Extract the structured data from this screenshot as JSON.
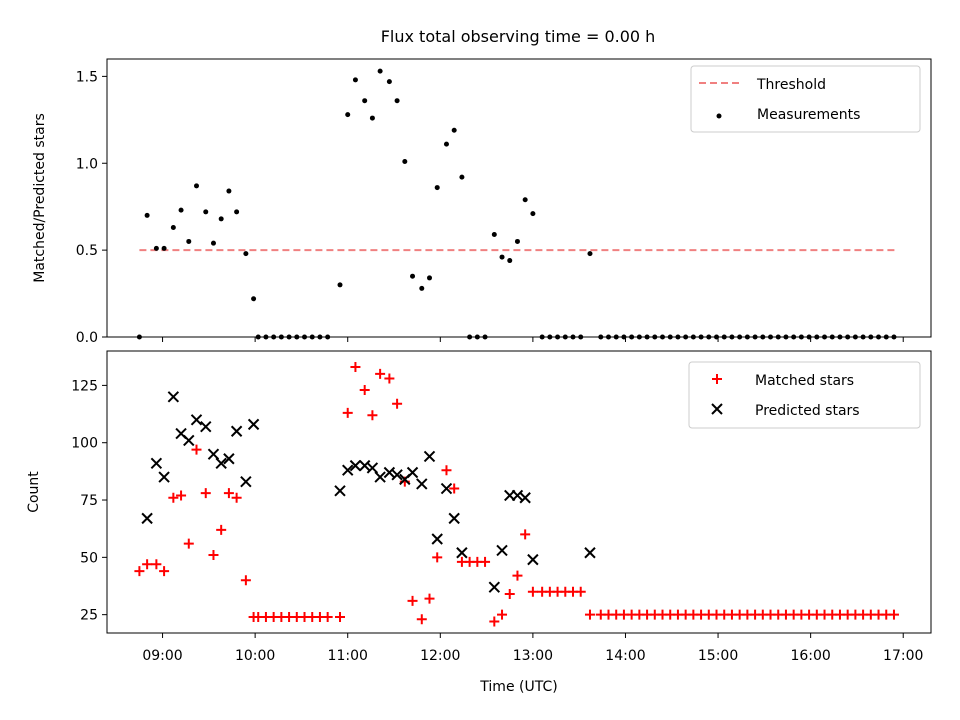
{
  "title": "Flux total observing time = 0.00 h",
  "colors": {
    "threshold": "#f08080",
    "measurements": "#000000",
    "matched": "#ff0000",
    "predicted": "#000000"
  },
  "chart_data": [
    {
      "type": "scatter",
      "ylabel": "Matched/Predicted stars",
      "xlim": [
        "08:24",
        "17:18"
      ],
      "ylim": [
        0,
        1.6
      ],
      "yticks": [
        "0.0",
        "0.5",
        "1.0",
        "1.5"
      ],
      "legend": {
        "position": "top-right",
        "entries": [
          "Threshold",
          "Measurements"
        ]
      },
      "series": [
        {
          "name": "Threshold",
          "kind": "dashed-line",
          "value": 0.5,
          "x_range": [
            "08:45",
            "16:55"
          ]
        },
        {
          "name": "Measurements",
          "kind": "points",
          "points": [
            [
              "08:45",
              0.0
            ],
            [
              "08:50",
              0.7
            ],
            [
              "08:56",
              0.51
            ],
            [
              "09:01",
              0.51
            ],
            [
              "09:07",
              0.63
            ],
            [
              "09:12",
              0.73
            ],
            [
              "09:17",
              0.55
            ],
            [
              "09:22",
              0.87
            ],
            [
              "09:28",
              0.72
            ],
            [
              "09:33",
              0.54
            ],
            [
              "09:38",
              0.68
            ],
            [
              "09:43",
              0.84
            ],
            [
              "09:48",
              0.72
            ],
            [
              "09:54",
              0.48
            ],
            [
              "09:59",
              0.22
            ],
            [
              "10:02",
              0.0
            ],
            [
              "10:07",
              0.0
            ],
            [
              "10:12",
              0.0
            ],
            [
              "10:17",
              0.0
            ],
            [
              "10:22",
              0.0
            ],
            [
              "10:27",
              0.0
            ],
            [
              "10:32",
              0.0
            ],
            [
              "10:37",
              0.0
            ],
            [
              "10:42",
              0.0
            ],
            [
              "10:47",
              0.0
            ],
            [
              "10:55",
              0.3
            ],
            [
              "11:00",
              1.28
            ],
            [
              "11:05",
              1.48
            ],
            [
              "11:11",
              1.36
            ],
            [
              "11:16",
              1.26
            ],
            [
              "11:21",
              1.53
            ],
            [
              "11:27",
              1.47
            ],
            [
              "11:32",
              1.36
            ],
            [
              "11:37",
              1.01
            ],
            [
              "11:42",
              0.35
            ],
            [
              "11:48",
              0.28
            ],
            [
              "11:53",
              0.34
            ],
            [
              "11:58",
              0.86
            ],
            [
              "12:04",
              1.11
            ],
            [
              "12:09",
              1.19
            ],
            [
              "12:14",
              0.92
            ],
            [
              "12:19",
              0.0
            ],
            [
              "12:24",
              0.0
            ],
            [
              "12:29",
              0.0
            ],
            [
              "12:35",
              0.59
            ],
            [
              "12:40",
              0.46
            ],
            [
              "12:45",
              0.44
            ],
            [
              "12:50",
              0.55
            ],
            [
              "12:55",
              0.79
            ],
            [
              "13:00",
              0.71
            ],
            [
              "13:06",
              0.0
            ],
            [
              "13:11",
              0.0
            ],
            [
              "13:16",
              0.0
            ],
            [
              "13:21",
              0.0
            ],
            [
              "13:26",
              0.0
            ],
            [
              "13:31",
              0.0
            ],
            [
              "13:37",
              0.48
            ],
            [
              "13:44",
              0.0
            ],
            [
              "13:49",
              0.0
            ],
            [
              "13:54",
              0.0
            ],
            [
              "13:59",
              0.0
            ],
            [
              "14:04",
              0.0
            ],
            [
              "14:09",
              0.0
            ],
            [
              "14:14",
              0.0
            ],
            [
              "14:19",
              0.0
            ],
            [
              "14:24",
              0.0
            ],
            [
              "14:29",
              0.0
            ],
            [
              "14:34",
              0.0
            ],
            [
              "14:39",
              0.0
            ],
            [
              "14:44",
              0.0
            ],
            [
              "14:49",
              0.0
            ],
            [
              "14:54",
              0.0
            ],
            [
              "14:59",
              0.0
            ],
            [
              "15:04",
              0.0
            ],
            [
              "15:09",
              0.0
            ],
            [
              "15:14",
              0.0
            ],
            [
              "15:19",
              0.0
            ],
            [
              "15:24",
              0.0
            ],
            [
              "15:29",
              0.0
            ],
            [
              "15:34",
              0.0
            ],
            [
              "15:39",
              0.0
            ],
            [
              "15:44",
              0.0
            ],
            [
              "15:49",
              0.0
            ],
            [
              "15:54",
              0.0
            ],
            [
              "15:59",
              0.0
            ],
            [
              "16:04",
              0.0
            ],
            [
              "16:09",
              0.0
            ],
            [
              "16:14",
              0.0
            ],
            [
              "16:19",
              0.0
            ],
            [
              "16:24",
              0.0
            ],
            [
              "16:29",
              0.0
            ],
            [
              "16:34",
              0.0
            ],
            [
              "16:39",
              0.0
            ],
            [
              "16:44",
              0.0
            ],
            [
              "16:49",
              0.0
            ],
            [
              "16:54",
              0.0
            ]
          ]
        }
      ]
    },
    {
      "type": "scatter",
      "xlabel": "Time (UTC)",
      "ylabel": "Count",
      "xlim": [
        "08:24",
        "17:18"
      ],
      "ylim": [
        17,
        140
      ],
      "xticks": [
        "09:00",
        "10:00",
        "11:00",
        "12:00",
        "13:00",
        "14:00",
        "15:00",
        "16:00",
        "17:00"
      ],
      "yticks": [
        "25",
        "50",
        "75",
        "100",
        "125"
      ],
      "legend": {
        "position": "top-right",
        "entries": [
          "Matched stars",
          "Predicted stars"
        ]
      },
      "series": [
        {
          "name": "Matched stars",
          "marker": "+",
          "points": [
            [
              "08:45",
              44
            ],
            [
              "08:50",
              47
            ],
            [
              "08:56",
              47
            ],
            [
              "09:01",
              44
            ],
            [
              "09:07",
              76
            ],
            [
              "09:12",
              77
            ],
            [
              "09:17",
              56
            ],
            [
              "09:22",
              97
            ],
            [
              "09:28",
              78
            ],
            [
              "09:33",
              51
            ],
            [
              "09:38",
              62
            ],
            [
              "09:43",
              78
            ],
            [
              "09:48",
              76
            ],
            [
              "09:54",
              40
            ],
            [
              "09:59",
              24
            ],
            [
              "10:02",
              24
            ],
            [
              "10:07",
              24
            ],
            [
              "10:12",
              24
            ],
            [
              "10:17",
              24
            ],
            [
              "10:22",
              24
            ],
            [
              "10:27",
              24
            ],
            [
              "10:32",
              24
            ],
            [
              "10:37",
              24
            ],
            [
              "10:42",
              24
            ],
            [
              "10:47",
              24
            ],
            [
              "10:55",
              24
            ],
            [
              "11:00",
              113
            ],
            [
              "11:05",
              133
            ],
            [
              "11:11",
              123
            ],
            [
              "11:16",
              112
            ],
            [
              "11:21",
              130
            ],
            [
              "11:27",
              128
            ],
            [
              "11:32",
              117
            ],
            [
              "11:37",
              83
            ],
            [
              "11:42",
              31
            ],
            [
              "11:48",
              23
            ],
            [
              "11:53",
              32
            ],
            [
              "11:58",
              50
            ],
            [
              "12:04",
              88
            ],
            [
              "12:09",
              80
            ],
            [
              "12:14",
              48
            ],
            [
              "12:19",
              48
            ],
            [
              "12:24",
              48
            ],
            [
              "12:29",
              48
            ],
            [
              "12:35",
              22
            ],
            [
              "12:40",
              25
            ],
            [
              "12:45",
              34
            ],
            [
              "12:50",
              42
            ],
            [
              "12:55",
              60
            ],
            [
              "13:00",
              35
            ],
            [
              "13:06",
              35
            ],
            [
              "13:11",
              35
            ],
            [
              "13:16",
              35
            ],
            [
              "13:21",
              35
            ],
            [
              "13:26",
              35
            ],
            [
              "13:31",
              35
            ],
            [
              "13:37",
              25
            ],
            [
              "13:44",
              25
            ],
            [
              "13:49",
              25
            ],
            [
              "13:54",
              25
            ],
            [
              "13:59",
              25
            ],
            [
              "14:04",
              25
            ],
            [
              "14:09",
              25
            ],
            [
              "14:14",
              25
            ],
            [
              "14:19",
              25
            ],
            [
              "14:24",
              25
            ],
            [
              "14:29",
              25
            ],
            [
              "14:34",
              25
            ],
            [
              "14:39",
              25
            ],
            [
              "14:44",
              25
            ],
            [
              "14:49",
              25
            ],
            [
              "14:54",
              25
            ],
            [
              "14:59",
              25
            ],
            [
              "15:04",
              25
            ],
            [
              "15:09",
              25
            ],
            [
              "15:14",
              25
            ],
            [
              "15:19",
              25
            ],
            [
              "15:24",
              25
            ],
            [
              "15:29",
              25
            ],
            [
              "15:34",
              25
            ],
            [
              "15:39",
              25
            ],
            [
              "15:44",
              25
            ],
            [
              "15:49",
              25
            ],
            [
              "15:54",
              25
            ],
            [
              "15:59",
              25
            ],
            [
              "16:04",
              25
            ],
            [
              "16:09",
              25
            ],
            [
              "16:14",
              25
            ],
            [
              "16:19",
              25
            ],
            [
              "16:24",
              25
            ],
            [
              "16:29",
              25
            ],
            [
              "16:34",
              25
            ],
            [
              "16:39",
              25
            ],
            [
              "16:44",
              25
            ],
            [
              "16:49",
              25
            ],
            [
              "16:54",
              25
            ]
          ]
        },
        {
          "name": "Predicted stars",
          "marker": "x",
          "points": [
            [
              "08:50",
              67
            ],
            [
              "08:56",
              91
            ],
            [
              "09:01",
              85
            ],
            [
              "09:07",
              120
            ],
            [
              "09:12",
              104
            ],
            [
              "09:17",
              101
            ],
            [
              "09:22",
              110
            ],
            [
              "09:28",
              107
            ],
            [
              "09:33",
              95
            ],
            [
              "09:38",
              91
            ],
            [
              "09:43",
              93
            ],
            [
              "09:48",
              105
            ],
            [
              "09:54",
              83
            ],
            [
              "09:59",
              108
            ],
            [
              "10:55",
              79
            ],
            [
              "11:00",
              88
            ],
            [
              "11:05",
              90
            ],
            [
              "11:11",
              90
            ],
            [
              "11:16",
              89
            ],
            [
              "11:21",
              85
            ],
            [
              "11:27",
              87
            ],
            [
              "11:32",
              86
            ],
            [
              "11:37",
              84
            ],
            [
              "11:42",
              87
            ],
            [
              "11:48",
              82
            ],
            [
              "11:53",
              94
            ],
            [
              "11:58",
              58
            ],
            [
              "12:04",
              80
            ],
            [
              "12:09",
              67
            ],
            [
              "12:14",
              52
            ],
            [
              "12:35",
              37
            ],
            [
              "12:40",
              53
            ],
            [
              "12:45",
              77
            ],
            [
              "12:50",
              77
            ],
            [
              "12:55",
              76
            ],
            [
              "13:00",
              49
            ],
            [
              "13:37",
              52
            ]
          ]
        }
      ]
    }
  ]
}
